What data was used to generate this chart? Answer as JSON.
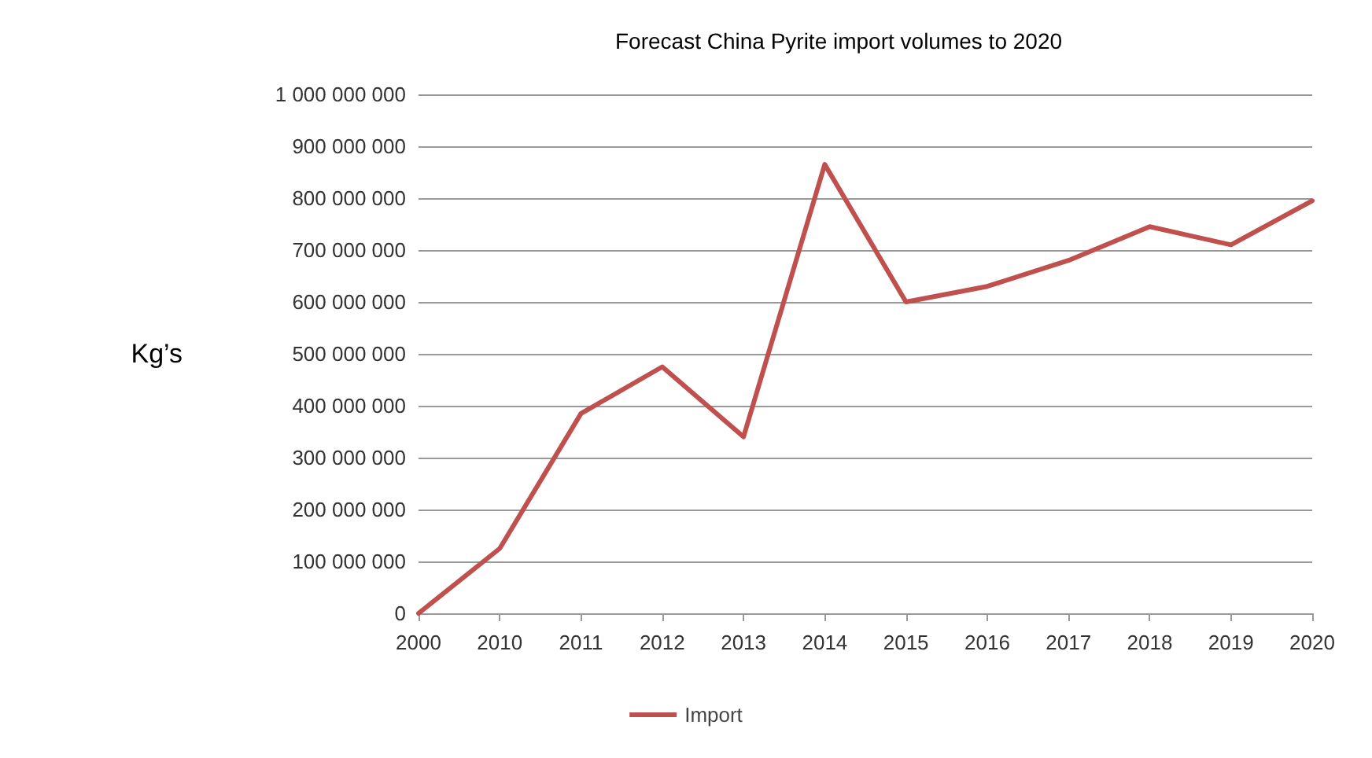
{
  "chart_data": {
    "type": "line",
    "title": "Forecast China Pyrite import volumes to 2020",
    "ylabel": "Kg’s",
    "categories": [
      "2000",
      "2010",
      "2011",
      "2012",
      "2013",
      "2014",
      "2015",
      "2016",
      "2017",
      "2018",
      "2019",
      "2020"
    ],
    "series": [
      {
        "name": "Import",
        "color": "#c0504d",
        "values": [
          0,
          125000000,
          385000000,
          475000000,
          340000000,
          865000000,
          600000000,
          630000000,
          680000000,
          745000000,
          710000000,
          795000000
        ]
      }
    ],
    "ylim": [
      0,
      1000000000
    ],
    "yticks": [
      {
        "value": 0,
        "label": "0"
      },
      {
        "value": 100000000,
        "label": "100 000 000"
      },
      {
        "value": 200000000,
        "label": "200 000 000"
      },
      {
        "value": 300000000,
        "label": "300 000 000"
      },
      {
        "value": 400000000,
        "label": "400 000 000"
      },
      {
        "value": 500000000,
        "label": "500 000 000"
      },
      {
        "value": 600000000,
        "label": "600 000 000"
      },
      {
        "value": 700000000,
        "label": "700 000 000"
      },
      {
        "value": 800000000,
        "label": "800 000 000"
      },
      {
        "value": 900000000,
        "label": "900 000 000"
      },
      {
        "value": 1000000000,
        "label": "1 000 000 000"
      }
    ],
    "grid": "y",
    "legend": "bottom",
    "marker": "none",
    "line_style": "solid"
  }
}
